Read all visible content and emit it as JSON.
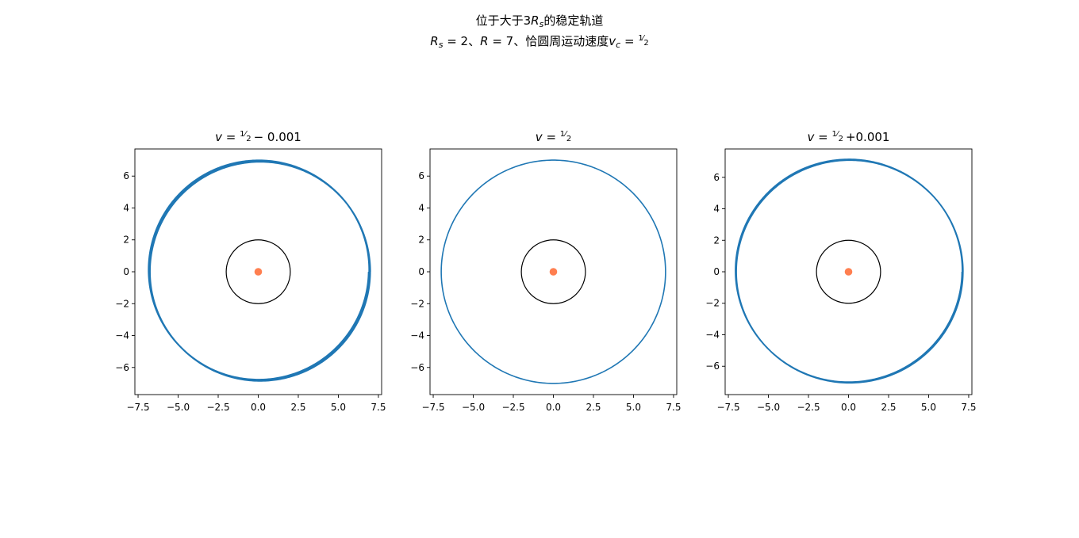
{
  "figure": {
    "suptitle_line1_a": "位于大于3",
    "suptitle_line1_b": "的稳定轨道",
    "suptitle_line2_a": "= 2、",
    "suptitle_line2_b": "= 7、恰圆周运动速度",
    "suptitle_line2_c": "="
  },
  "chart_data": [
    {
      "type": "line",
      "title_prefix": "v =",
      "title_suffix": "− 0.001",
      "xlim": [
        -7.7,
        7.7
      ],
      "ylim": [
        -7.7,
        7.7
      ],
      "xticks": [
        -7.5,
        -5.0,
        -2.5,
        0.0,
        2.5,
        5.0,
        7.5
      ],
      "xtick_labels": [
        "−7.5",
        "−5.0",
        "−2.5",
        "0.0",
        "2.5",
        "5.0",
        "7.5"
      ],
      "yticks": [
        -6,
        -4,
        -2,
        0,
        2,
        4,
        6
      ],
      "ytick_labels": [
        "−6",
        "−4",
        "−2",
        "0",
        "2",
        "4",
        "6"
      ],
      "series": [
        {
          "kind": "orbit",
          "r_max": 7.0,
          "r_min": 6.75,
          "turns": 6,
          "color": "#1f77b4"
        }
      ],
      "horizon_radius": 2,
      "horizon_color": "#000000",
      "center_point": [
        0,
        0
      ],
      "center_color": "#ff7f50",
      "grid": false
    },
    {
      "type": "line",
      "title_prefix": "v =",
      "title_suffix": "",
      "xlim": [
        -7.7,
        7.7
      ],
      "ylim": [
        -7.7,
        7.7
      ],
      "xticks": [
        -7.5,
        -5.0,
        -2.5,
        0.0,
        2.5,
        5.0,
        7.5
      ],
      "xtick_labels": [
        "−7.5",
        "−5.0",
        "−2.5",
        "0.0",
        "2.5",
        "5.0",
        "7.5"
      ],
      "yticks": [
        -6,
        -4,
        -2,
        0,
        2,
        4,
        6
      ],
      "ytick_labels": [
        "−6",
        "−4",
        "−2",
        "0",
        "2",
        "4",
        "6"
      ],
      "series": [
        {
          "kind": "orbit",
          "r_max": 7.0,
          "r_min": 7.0,
          "turns": 1,
          "color": "#1f77b4"
        }
      ],
      "horizon_radius": 2,
      "horizon_color": "#000000",
      "center_point": [
        0,
        0
      ],
      "center_color": "#ff7f50",
      "grid": false
    },
    {
      "type": "line",
      "title_prefix": "v =",
      "title_suffix": "+0.001",
      "xlim": [
        -7.7,
        7.7
      ],
      "ylim": [
        -7.8,
        7.8
      ],
      "xticks": [
        -7.5,
        -5.0,
        -2.5,
        0.0,
        2.5,
        5.0,
        7.5
      ],
      "xtick_labels": [
        "−7.5",
        "−5.0",
        "−2.5",
        "0.0",
        "2.5",
        "5.0",
        "7.5"
      ],
      "yticks": [
        -6,
        -4,
        -2,
        0,
        2,
        4,
        6
      ],
      "ytick_labels": [
        "−6",
        "−4",
        "−2",
        "0",
        "2",
        "4",
        "6"
      ],
      "series": [
        {
          "kind": "orbit",
          "r_max": 7.15,
          "r_min": 7.0,
          "turns": 6,
          "color": "#1f77b4"
        }
      ],
      "horizon_radius": 2,
      "horizon_color": "#000000",
      "center_point": [
        0,
        0
      ],
      "center_color": "#ff7f50",
      "grid": false
    }
  ]
}
